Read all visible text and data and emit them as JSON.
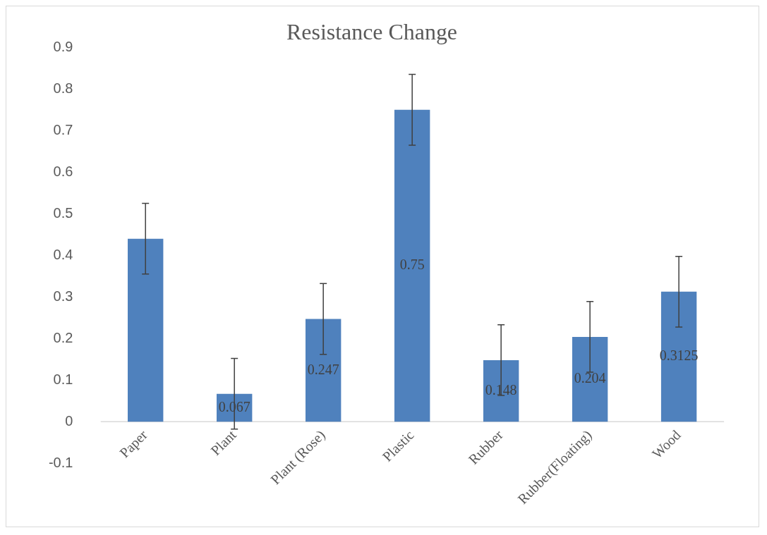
{
  "chart_data": {
    "type": "bar",
    "title": "Resistance Change",
    "categories": [
      "Paper",
      "Plant",
      "Plant (Rose)",
      "Plastic",
      "Rubber",
      "Rubber(Floating)",
      "Wood"
    ],
    "values": [
      0.44,
      0.067,
      0.247,
      0.75,
      0.148,
      0.204,
      0.3125
    ],
    "value_labels": [
      null,
      "0.067",
      "0.247",
      "0.75",
      "0.148",
      "0.204",
      "0.3125"
    ],
    "errors": [
      0.085,
      0.085,
      0.085,
      0.085,
      0.085,
      0.085,
      0.085
    ],
    "color": "#4f81bd",
    "ylim": [
      -0.1,
      0.9
    ],
    "yticks": [
      -0.1,
      0,
      0.1,
      0.2,
      0.3,
      0.4,
      0.5,
      0.6,
      0.7,
      0.8,
      0.9
    ],
    "grid": false,
    "legend": false
  }
}
